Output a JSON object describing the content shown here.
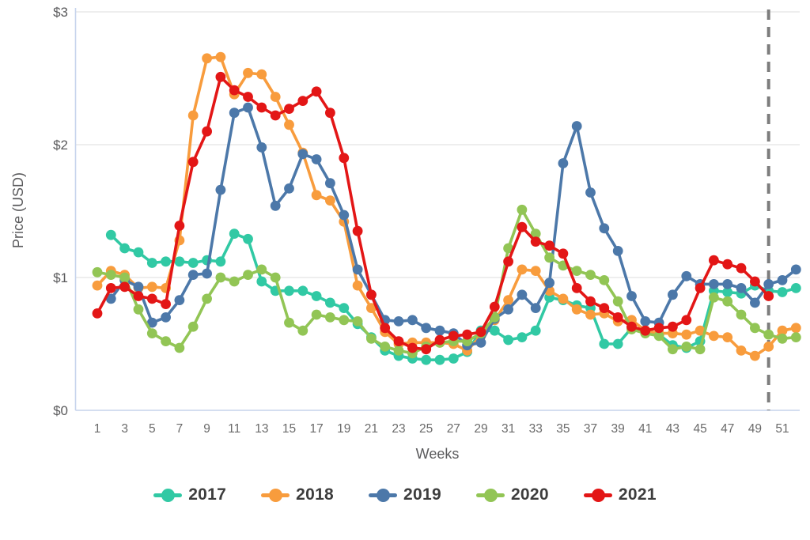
{
  "chart_data": {
    "type": "line",
    "title": "",
    "xlabel": "Weeks",
    "ylabel": "Price (USD)",
    "xlim": [
      1,
      52
    ],
    "ylim": [
      0,
      3
    ],
    "grid": "horizontal",
    "legend_position": "bottom",
    "x_tick_labels": [
      "1",
      "3",
      "5",
      "7",
      "9",
      "11",
      "13",
      "15",
      "17",
      "19",
      "21",
      "23",
      "25",
      "27",
      "29",
      "31",
      "33",
      "35",
      "37",
      "39",
      "41",
      "43",
      "45",
      "47",
      "49",
      "51"
    ],
    "x_tick_weeks": [
      1,
      3,
      5,
      7,
      9,
      11,
      13,
      15,
      17,
      19,
      21,
      23,
      25,
      27,
      29,
      31,
      33,
      35,
      37,
      39,
      41,
      43,
      45,
      47,
      49,
      51
    ],
    "y_tick_labels": [
      "$0",
      "$1",
      "$2",
      "$3"
    ],
    "y_tick_values": [
      0,
      1,
      2,
      3
    ],
    "annotation": {
      "type": "dashed-vline",
      "week": 50,
      "color": "#7d7d7d"
    },
    "weeks": [
      1,
      2,
      3,
      4,
      5,
      6,
      7,
      8,
      9,
      10,
      11,
      12,
      13,
      14,
      15,
      16,
      17,
      18,
      19,
      20,
      21,
      22,
      23,
      24,
      25,
      26,
      27,
      28,
      29,
      30,
      31,
      32,
      33,
      34,
      35,
      36,
      37,
      38,
      39,
      40,
      41,
      42,
      43,
      44,
      45,
      46,
      47,
      48,
      49,
      50,
      51,
      52
    ],
    "series": [
      {
        "name": "2017",
        "color": "#31C9A4",
        "values": [
          null,
          1.32,
          1.22,
          1.19,
          1.11,
          1.12,
          1.12,
          1.11,
          1.13,
          1.12,
          1.33,
          1.29,
          0.97,
          0.9,
          0.9,
          0.9,
          0.86,
          0.81,
          0.77,
          0.65,
          0.55,
          0.45,
          0.41,
          0.39,
          0.38,
          0.38,
          0.39,
          0.44,
          0.6,
          0.6,
          0.53,
          0.55,
          0.6,
          0.85,
          0.83,
          0.79,
          0.77,
          0.5,
          0.5,
          0.62,
          0.6,
          0.57,
          0.49,
          0.47,
          0.52,
          0.9,
          0.89,
          0.88,
          0.94,
          0.9,
          0.89,
          0.92
        ]
      },
      {
        "name": "2018",
        "color": "#F89C3D",
        "values": [
          0.94,
          1.05,
          1.02,
          0.92,
          0.93,
          0.92,
          1.28,
          2.22,
          2.65,
          2.66,
          2.38,
          2.54,
          2.53,
          2.36,
          2.15,
          1.94,
          1.62,
          1.58,
          1.42,
          0.94,
          0.77,
          0.59,
          0.5,
          0.51,
          0.51,
          0.51,
          0.5,
          0.45,
          0.56,
          0.68,
          0.83,
          1.06,
          1.05,
          0.9,
          0.84,
          0.76,
          0.72,
          0.73,
          0.67,
          0.68,
          0.6,
          0.58,
          0.58,
          0.57,
          0.6,
          0.56,
          0.55,
          0.45,
          0.41,
          0.48,
          0.6,
          0.62
        ]
      },
      {
        "name": "2019",
        "color": "#4C78A9",
        "values": [
          null,
          0.84,
          0.98,
          0.93,
          0.66,
          0.7,
          0.83,
          1.02,
          1.03,
          1.66,
          2.24,
          2.28,
          1.98,
          1.54,
          1.67,
          1.93,
          1.89,
          1.71,
          1.47,
          1.06,
          0.87,
          0.68,
          0.67,
          0.68,
          0.62,
          0.6,
          0.58,
          0.49,
          0.51,
          0.69,
          0.76,
          0.87,
          0.77,
          0.96,
          1.86,
          2.14,
          1.64,
          1.37,
          1.2,
          0.86,
          0.67,
          0.66,
          0.87,
          1.01,
          0.95,
          0.95,
          0.95,
          0.92,
          0.81,
          0.95,
          0.98,
          1.06
        ]
      },
      {
        "name": "2020",
        "color": "#92C555",
        "values": [
          1.04,
          1.02,
          1.0,
          0.76,
          0.58,
          0.52,
          0.47,
          0.63,
          0.84,
          1.0,
          0.97,
          1.02,
          1.06,
          1.0,
          0.66,
          0.6,
          0.72,
          0.7,
          0.68,
          0.67,
          0.54,
          0.48,
          0.45,
          0.43,
          0.48,
          0.51,
          0.52,
          0.52,
          0.58,
          0.7,
          1.22,
          1.51,
          1.33,
          1.15,
          1.09,
          1.05,
          1.02,
          0.98,
          0.82,
          0.61,
          0.58,
          0.56,
          0.46,
          0.48,
          0.46,
          0.85,
          0.82,
          0.72,
          0.62,
          0.57,
          0.54,
          0.55
        ]
      },
      {
        "name": "2021",
        "color": "#E31616",
        "values": [
          0.73,
          0.92,
          0.93,
          0.86,
          0.84,
          0.8,
          1.39,
          1.87,
          2.1,
          2.51,
          2.41,
          2.36,
          2.28,
          2.22,
          2.27,
          2.33,
          2.4,
          2.24,
          1.9,
          1.35,
          0.87,
          0.62,
          0.52,
          0.47,
          0.46,
          0.53,
          0.56,
          0.57,
          0.59,
          0.78,
          1.12,
          1.38,
          1.27,
          1.24,
          1.18,
          0.92,
          0.82,
          0.77,
          0.7,
          0.63,
          0.6,
          0.62,
          0.63,
          0.68,
          0.92,
          1.13,
          1.1,
          1.07,
          0.97,
          0.86,
          null,
          null
        ]
      }
    ]
  },
  "style": {
    "grid_color": "#e8e8e8",
    "axis_border_color": "#c6d3ec",
    "tick_text_color": "#6a6a6a",
    "axis_title_color": "#5a5a5c",
    "legend_text_color": "#3d3d3d",
    "background": "#ffffff"
  }
}
